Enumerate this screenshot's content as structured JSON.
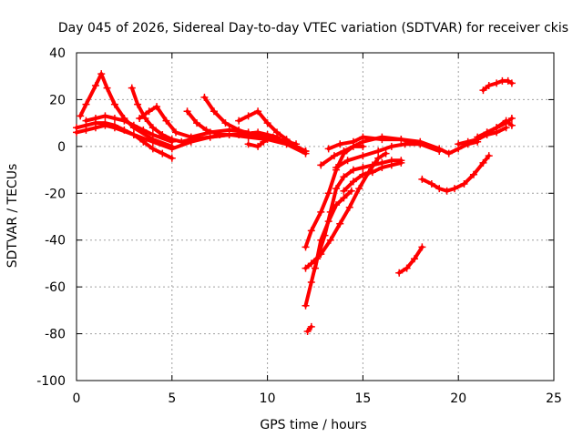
{
  "chart_data": {
    "type": "scatter",
    "title": "Day 045 of 2026, Sidereal Day-to-day VTEC variation (SDTVAR) for receiver ckis",
    "xlabel": "GPS time / hours",
    "ylabel": "SDTVAR / TECUs",
    "xlim": [
      0,
      25
    ],
    "ylim": [
      -100,
      40
    ],
    "xticks": [
      0,
      5,
      10,
      15,
      20,
      25
    ],
    "yticks": [
      -100,
      -80,
      -60,
      -40,
      -20,
      0,
      20,
      40
    ],
    "xtick_labels": [
      "0",
      "5",
      "10",
      "15",
      "20",
      "25"
    ],
    "ytick_labels": [
      "-100",
      "-80",
      "-60",
      "-40",
      "-20",
      "0",
      "20",
      "40"
    ],
    "grid": true,
    "marker": "plus",
    "color": "#ff0000",
    "series": [
      {
        "x": [
          0.0,
          0.5,
          1.0,
          1.5,
          2.0,
          3.0,
          4.0,
          5.0,
          6.0,
          7.0,
          8.0,
          9.0,
          10.0,
          11.0,
          12.0
        ],
        "y": [
          6,
          7,
          8,
          9,
          8,
          5,
          2,
          -1,
          2,
          4,
          5,
          4,
          3,
          1,
          -3
        ]
      },
      {
        "x": [
          0.0,
          0.5,
          1.0,
          1.5,
          2.0,
          2.5,
          3.0,
          3.5,
          4.0,
          4.5,
          5.0
        ],
        "y": [
          8,
          9,
          10,
          10,
          9,
          7,
          5,
          2,
          -1,
          -3,
          -5
        ]
      },
      {
        "x": [
          0.2,
          0.5,
          1.0,
          1.3,
          1.6,
          2.0,
          2.5,
          3.0,
          4.0,
          5.0
        ],
        "y": [
          13,
          18,
          26,
          31,
          25,
          18,
          12,
          8,
          3,
          0
        ]
      },
      {
        "x": [
          0.5,
          1.0,
          1.5,
          2.0,
          2.5,
          3.0,
          3.5,
          4.0,
          5.0
        ],
        "y": [
          11,
          12,
          13,
          12,
          11,
          9,
          7,
          5,
          2
        ]
      },
      {
        "x": [
          2.9,
          3.2,
          3.6,
          4.0,
          4.5,
          5.0,
          5.5,
          6.0,
          7.0,
          8.0
        ],
        "y": [
          25,
          18,
          12,
          8,
          5,
          3,
          2,
          3,
          4,
          5
        ]
      },
      {
        "x": [
          3.3,
          3.8,
          4.2,
          4.7,
          5.2,
          6.0,
          7.0,
          8.0,
          9.0
        ],
        "y": [
          12,
          15,
          17,
          11,
          6,
          4,
          6,
          7,
          6
        ]
      },
      {
        "x": [
          5.8,
          6.3,
          6.8,
          7.5,
          8.5,
          9.5,
          10.0,
          10.5
        ],
        "y": [
          15,
          10,
          7,
          5,
          5,
          6,
          5,
          4
        ]
      },
      {
        "x": [
          6.7,
          7.2,
          7.8,
          8.5,
          9.2,
          10.0,
          11.0,
          12.0
        ],
        "y": [
          21,
          15,
          10,
          7,
          5,
          4,
          2,
          -2
        ]
      },
      {
        "x": [
          8.5,
          9.0,
          9.5,
          10.0,
          10.5,
          11.0,
          11.5,
          12.0
        ],
        "y": [
          11,
          13,
          15,
          10,
          6,
          3,
          0,
          -2
        ]
      },
      {
        "x": [
          9.0,
          9.5,
          9.8,
          10.3,
          11.0,
          11.5
        ],
        "y": [
          1,
          0,
          2,
          4,
          2,
          1
        ]
      },
      {
        "x": [
          12.0,
          12.3,
          12.8,
          13.2,
          13.6,
          14.0,
          14.5,
          15.0
        ],
        "y": [
          -43,
          -36,
          -28,
          -20,
          -10,
          -3,
          0,
          0
        ]
      },
      {
        "x": [
          12.0,
          12.3,
          12.6,
          13.0,
          13.3,
          13.6,
          14.0,
          14.5,
          15.0,
          15.5,
          16.0,
          16.5,
          17.0
        ],
        "y": [
          -68,
          -58,
          -48,
          -38,
          -28,
          -18,
          -13,
          -10,
          -9,
          -8,
          -7,
          -6,
          -6
        ]
      },
      {
        "x": [
          12.0,
          12.3,
          12.8,
          13.3,
          13.8,
          14.3,
          14.8,
          15.3,
          15.8,
          16.2
        ],
        "y": [
          -52,
          -50,
          -46,
          -40,
          -33,
          -26,
          -18,
          -11,
          -5,
          -3
        ]
      },
      {
        "x": [
          12.5,
          12.8,
          13.2,
          13.6,
          14.0,
          14.4
        ],
        "y": [
          -52,
          -40,
          -32,
          -25,
          -22,
          -19
        ]
      },
      {
        "x": [
          12.1,
          12.3
        ],
        "y": [
          -79,
          -77
        ]
      },
      {
        "x": [
          12.8,
          13.5,
          14.0,
          15.0,
          16.0,
          17.0,
          18.0,
          19.0,
          19.5,
          20.0,
          20.5,
          21.0
        ],
        "y": [
          -8,
          -4,
          -2,
          2,
          4,
          3,
          2,
          -1,
          -3,
          -1,
          1,
          2
        ]
      },
      {
        "x": [
          13.2,
          13.8,
          14.5,
          15.0,
          16.0,
          17.0,
          18.0,
          19.0
        ],
        "y": [
          -1,
          1,
          2,
          4,
          3,
          3,
          1,
          -2
        ]
      },
      {
        "x": [
          13.6,
          14.2,
          15.0,
          15.8,
          16.5,
          17.2,
          18.0
        ],
        "y": [
          -9,
          -6,
          -4,
          -2,
          0,
          1,
          1
        ]
      },
      {
        "x": [
          14.0,
          14.5,
          15.0,
          15.5,
          16.0,
          16.5,
          17.0
        ],
        "y": [
          -19,
          -15,
          -12,
          -11,
          -9,
          -8,
          -7
        ]
      },
      {
        "x": [
          16.9,
          17.3,
          17.7,
          18.1
        ],
        "y": [
          -54,
          -52,
          -48,
          -43
        ]
      },
      {
        "x": [
          18.1,
          18.6,
          19.0,
          19.4,
          19.8,
          20.3,
          20.8,
          21.3,
          21.6
        ],
        "y": [
          -14,
          -16,
          -18,
          -19,
          -18,
          -16,
          -12,
          -7,
          -4
        ]
      },
      {
        "x": [
          20.0,
          20.5,
          21.0,
          21.5,
          22.0,
          22.5
        ],
        "y": [
          1,
          2,
          3,
          5,
          6,
          8
        ]
      },
      {
        "x": [
          21.0,
          21.5,
          22.0,
          22.5,
          22.8
        ],
        "y": [
          4,
          6,
          8,
          10,
          12
        ]
      },
      {
        "x": [
          21.5,
          22.0,
          22.5,
          22.8
        ],
        "y": [
          6,
          8,
          11,
          9
        ]
      },
      {
        "x": [
          21.3,
          21.6,
          22.0,
          22.3,
          22.6,
          22.8
        ],
        "y": [
          24,
          26,
          27,
          28,
          28,
          27
        ]
      }
    ]
  }
}
